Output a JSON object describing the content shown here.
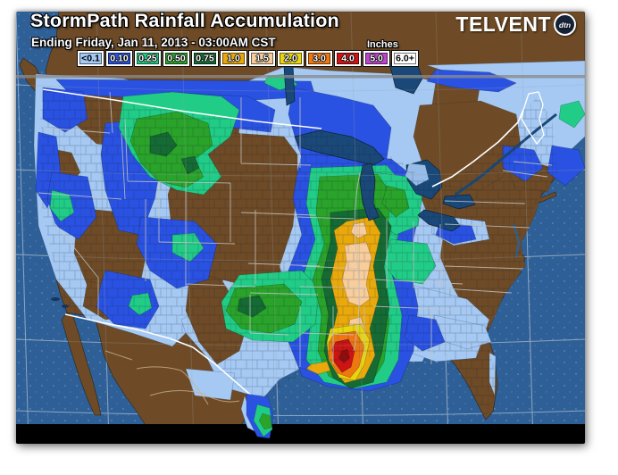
{
  "page": {
    "background_color": "#ffffff"
  },
  "header": {
    "title": "StormPath Rainfall Accumulation",
    "subtitle": "Ending Friday, Jan 11, 2013 - 03:00AM CST",
    "units_label": "Inches"
  },
  "brand": {
    "name": "TELVENT",
    "badge": "dtn"
  },
  "legend": {
    "units": "Inches",
    "items": [
      {
        "label": "<0.1",
        "color": "#a5c9f3",
        "text_style": "light"
      },
      {
        "label": "0.10",
        "color": "#2a52e2",
        "text_style": "dark"
      },
      {
        "label": "0.25",
        "color": "#21cc86",
        "text_style": "dark"
      },
      {
        "label": "0.50",
        "color": "#2aa32a",
        "text_style": "dark"
      },
      {
        "label": "0.75",
        "color": "#156b33",
        "text_style": "dark"
      },
      {
        "label": "1.0",
        "color": "#e9a90c",
        "text_style": "dark"
      },
      {
        "label": "1.5",
        "color": "#f7cd9c",
        "text_style": "dark"
      },
      {
        "label": "2.0",
        "color": "#e8d411",
        "text_style": "dark"
      },
      {
        "label": "3.0",
        "color": "#ee7711",
        "text_style": "dark"
      },
      {
        "label": "4.0",
        "color": "#cc1414",
        "text_style": "dark"
      },
      {
        "label": "5.0",
        "color": "#bb44cc",
        "text_style": "dark"
      },
      {
        "label": "6.0+",
        "color": "#ffffff",
        "text_style": "light"
      }
    ]
  },
  "map": {
    "colors": {
      "ocean": "#2e5f96",
      "land": "#6e4b26",
      "lakes": "#1a4878",
      "intl_border": "#ffffff",
      "state_lines": "#c4c4c4",
      "coverage_edge_line": "#8a8a8a",
      "bottom_mask": "#000000"
    }
  }
}
